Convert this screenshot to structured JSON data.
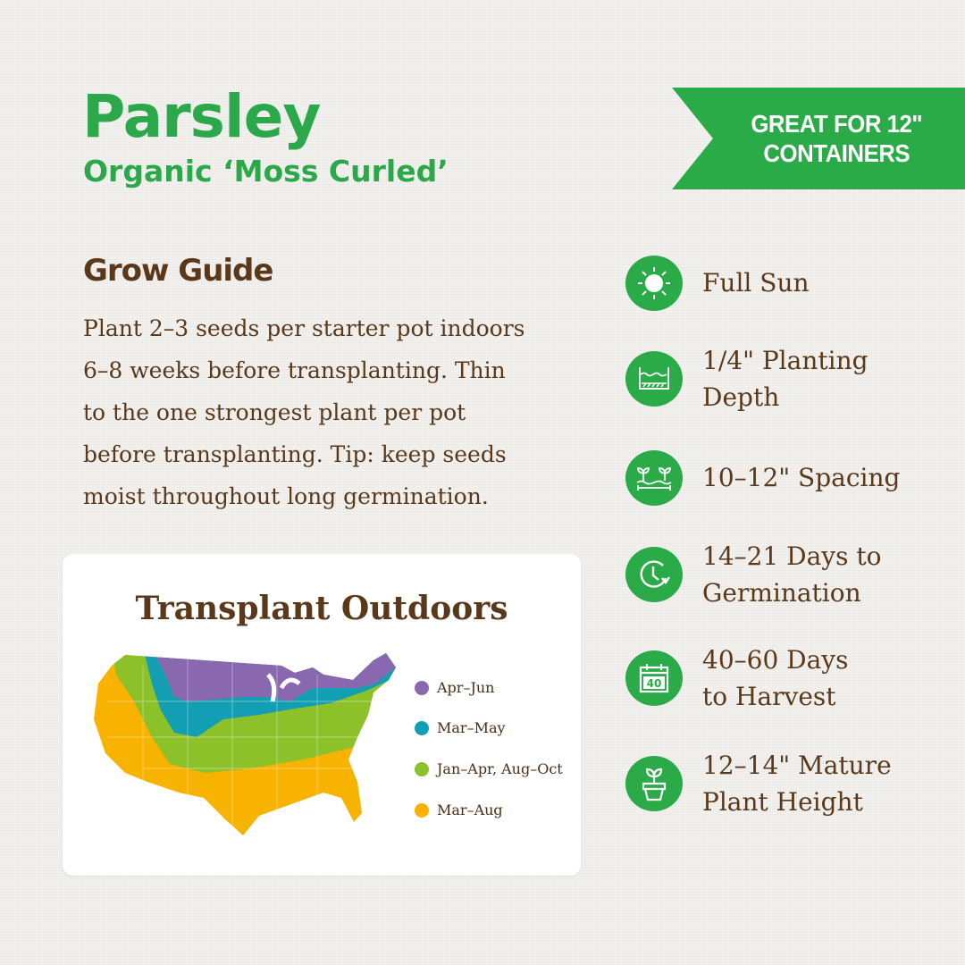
{
  "header": {
    "title": "Parsley",
    "subtitle": "Organic ‘Moss Curled’"
  },
  "banner": {
    "line1": "GREAT FOR 12\"",
    "line2": "CONTAINERS",
    "color": "#2aab48"
  },
  "guide": {
    "heading": "Grow Guide",
    "lines": [
      "Plant 2–3 seeds per starter pot indoors",
      "6–8 weeks before transplanting. Thin",
      "to the one strongest plant per pot",
      "before transplanting. Tip: keep seeds",
      "moist throughout long germination."
    ]
  },
  "map_card": {
    "title": "Transplant Outdoors",
    "legend": [
      {
        "label": "Apr–Jun",
        "color": "#8a68b0"
      },
      {
        "label": "Mar–May",
        "color": "#139fb3"
      },
      {
        "label": "Jan–Apr, Aug–Oct",
        "color": "#8cc12a"
      },
      {
        "label": "Mar–Aug",
        "color": "#f8b200"
      }
    ]
  },
  "features": [
    {
      "icon": "sun-icon",
      "lines": [
        "Full Sun"
      ]
    },
    {
      "icon": "planting-depth-icon",
      "lines": [
        "1/4\" Planting",
        "Depth"
      ]
    },
    {
      "icon": "spacing-icon",
      "lines": [
        "10–12\" Spacing"
      ]
    },
    {
      "icon": "clock-icon",
      "lines": [
        "14–21 Days to",
        "Germination"
      ]
    },
    {
      "icon": "calendar-icon",
      "lines": [
        "40–60 Days",
        "to Harvest"
      ],
      "calendar_number": "40"
    },
    {
      "icon": "plant-pot-icon",
      "lines": [
        "12–14\" Mature",
        "Plant Height"
      ]
    }
  ]
}
